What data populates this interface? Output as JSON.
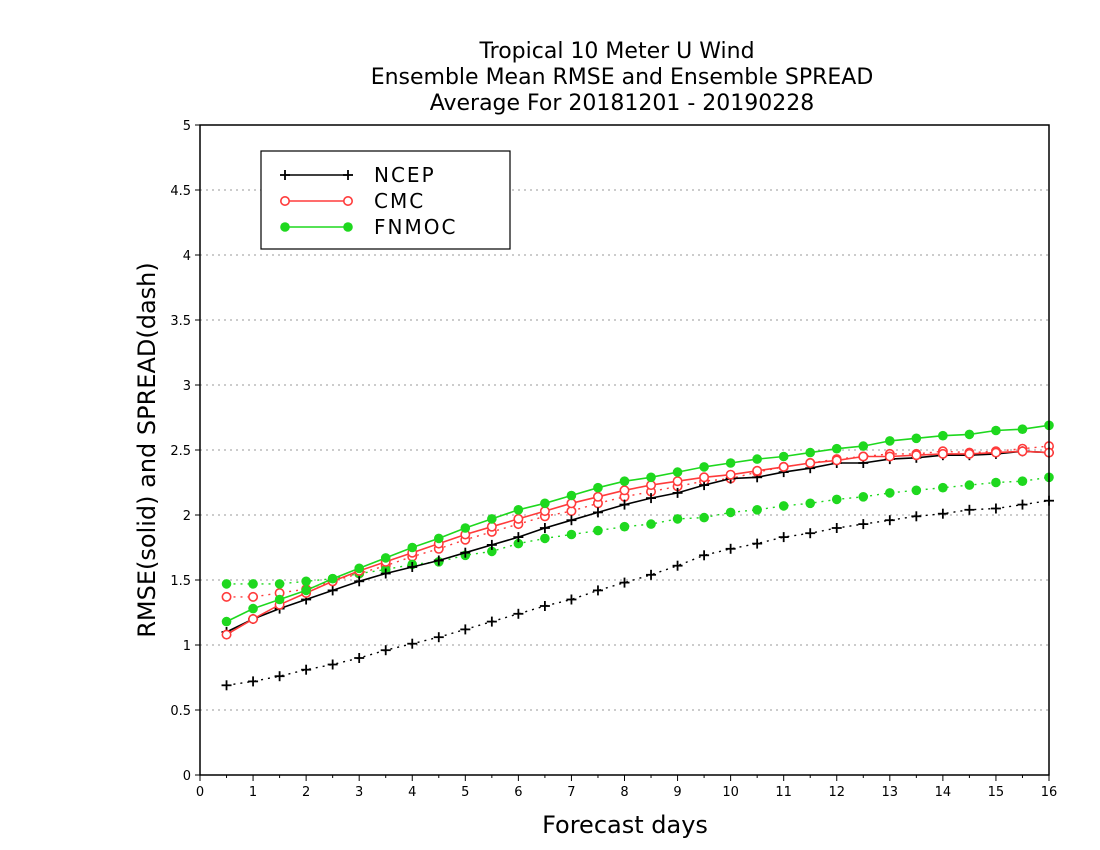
{
  "chart_data": {
    "type": "line",
    "title_lines": [
      "Tropical 10 Meter U Wind",
      "Ensemble Mean RMSE and Ensemble SPREAD",
      "Average For 20181201 - 20190228"
    ],
    "xlabel": "Forecast days",
    "ylabel": "RMSE(solid) and SPREAD(dash)",
    "xlim": [
      0,
      16
    ],
    "ylim": [
      0,
      5
    ],
    "x_ticks": [
      "0",
      "1",
      "2",
      "3",
      "4",
      "5",
      "6",
      "7",
      "8",
      "9",
      "10",
      "11",
      "12",
      "13",
      "14",
      "15",
      "16"
    ],
    "y_ticks": [
      "0",
      "0.5",
      "1",
      "1.5",
      "2",
      "2.5",
      "3",
      "3.5",
      "4",
      "4.5",
      "5"
    ],
    "grid": "horizontal dotted",
    "legend_position": "top-left",
    "x": [
      0.5,
      1,
      1.5,
      2,
      2.5,
      3,
      3.5,
      4,
      4.5,
      5,
      5.5,
      6,
      6.5,
      7,
      7.5,
      8,
      8.5,
      9,
      9.5,
      10,
      10.5,
      11,
      11.5,
      12,
      12.5,
      13,
      13.5,
      14,
      14.5,
      15,
      15.5,
      16
    ],
    "series": [
      {
        "name": "NCEP",
        "color": "#000000",
        "marker": "plus",
        "rmse": [
          1.1,
          1.2,
          1.28,
          1.35,
          1.42,
          1.49,
          1.55,
          1.6,
          1.65,
          1.71,
          1.77,
          1.83,
          1.9,
          1.96,
          2.02,
          2.08,
          2.13,
          2.17,
          2.23,
          2.28,
          2.29,
          2.33,
          2.36,
          2.4,
          2.4,
          2.43,
          2.44,
          2.46,
          2.46,
          2.47,
          2.49,
          2.48
        ],
        "spread": [
          0.69,
          0.72,
          0.76,
          0.81,
          0.85,
          0.9,
          0.96,
          1.01,
          1.06,
          1.12,
          1.18,
          1.24,
          1.3,
          1.35,
          1.42,
          1.48,
          1.54,
          1.61,
          1.69,
          1.74,
          1.78,
          1.83,
          1.86,
          1.9,
          1.93,
          1.96,
          1.99,
          2.01,
          2.04,
          2.05,
          2.08,
          2.11
        ]
      },
      {
        "name": "CMC",
        "color": "#ff3b3b",
        "marker": "open-circle",
        "rmse": [
          1.08,
          1.2,
          1.31,
          1.4,
          1.49,
          1.57,
          1.64,
          1.71,
          1.78,
          1.85,
          1.91,
          1.97,
          2.03,
          2.09,
          2.14,
          2.19,
          2.23,
          2.26,
          2.29,
          2.31,
          2.34,
          2.37,
          2.4,
          2.42,
          2.45,
          2.45,
          2.46,
          2.47,
          2.47,
          2.48,
          2.49,
          2.48
        ],
        "spread": [
          1.37,
          1.37,
          1.4,
          1.43,
          1.49,
          1.55,
          1.61,
          1.68,
          1.74,
          1.81,
          1.87,
          1.93,
          1.99,
          2.03,
          2.09,
          2.14,
          2.18,
          2.22,
          2.26,
          2.28,
          2.33,
          2.37,
          2.4,
          2.43,
          2.45,
          2.47,
          2.47,
          2.49,
          2.48,
          2.49,
          2.51,
          2.53
        ]
      },
      {
        "name": "FNMOC",
        "color": "#1ed81e",
        "marker": "filled-circle",
        "rmse": [
          1.18,
          1.28,
          1.35,
          1.42,
          1.51,
          1.59,
          1.67,
          1.75,
          1.82,
          1.9,
          1.97,
          2.04,
          2.09,
          2.15,
          2.21,
          2.26,
          2.29,
          2.33,
          2.37,
          2.4,
          2.43,
          2.45,
          2.48,
          2.51,
          2.53,
          2.57,
          2.59,
          2.61,
          2.62,
          2.65,
          2.66,
          2.69
        ],
        "spread": [
          1.47,
          1.47,
          1.47,
          1.49,
          1.51,
          1.55,
          1.58,
          1.62,
          1.64,
          1.69,
          1.72,
          1.78,
          1.82,
          1.85,
          1.88,
          1.91,
          1.93,
          1.97,
          1.98,
          2.02,
          2.04,
          2.07,
          2.09,
          2.12,
          2.14,
          2.17,
          2.19,
          2.21,
          2.23,
          2.25,
          2.26,
          2.29
        ]
      }
    ]
  }
}
